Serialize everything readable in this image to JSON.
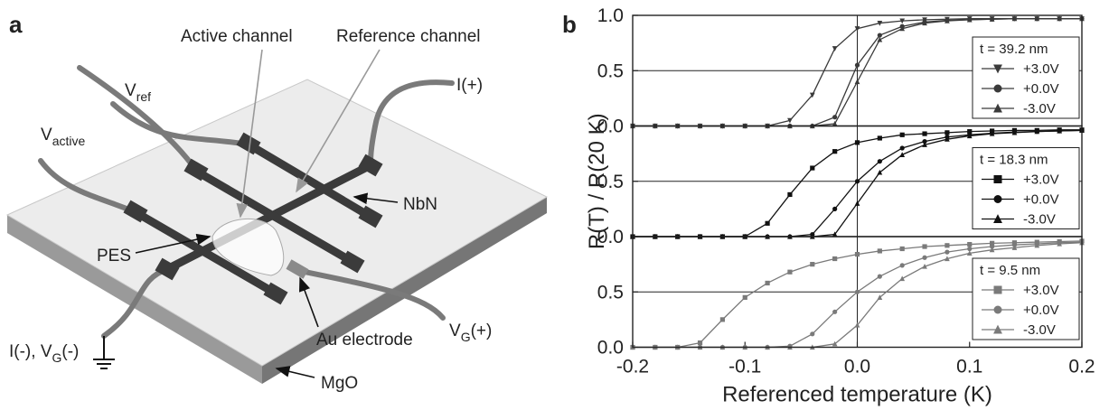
{
  "panel_a": {
    "label": "a",
    "active_channel": "Active channel",
    "reference_channel": "Reference channel",
    "i_plus": "I(+)",
    "v_ref": {
      "main": "V",
      "sub": "ref"
    },
    "v_active": {
      "main": "V",
      "sub": "active"
    },
    "nbn": "NbN",
    "pes": "PES",
    "i_minus": {
      "main": "I(-), V",
      "sub": "G",
      "tail": "(-)"
    },
    "au_electrode": "Au electrode",
    "vg_plus": {
      "main": "V",
      "sub": "G",
      "tail": "(+)"
    },
    "mgo": "MgO"
  },
  "panel_b_label": "b",
  "chart_data": [
    {
      "type": "line",
      "ylabel": "R(T) / R(20 K)",
      "legend_title": "t = 39.2 nm",
      "legend": "right",
      "x": [
        -0.2,
        -0.18,
        -0.16,
        -0.14,
        -0.12,
        -0.1,
        -0.08,
        -0.06,
        -0.04,
        -0.02,
        0,
        0.02,
        0.04,
        0.06,
        0.08,
        0.1,
        0.12,
        0.14,
        0.16,
        0.18,
        0.2
      ],
      "xlim": [
        -0.2,
        0.2
      ],
      "ylim": [
        0,
        1
      ],
      "yticks": [
        {
          "value": 0,
          "label": "0.0"
        },
        0.5,
        {
          "value": 1,
          "label": "1.0"
        }
      ],
      "grid": true,
      "vline": 0,
      "series": [
        {
          "name": "+3.0V",
          "color": "#3a3a3a",
          "marker": "triangle-down",
          "values": [
            0,
            0,
            0,
            0,
            0,
            0,
            0,
            0.05,
            0.28,
            0.7,
            0.88,
            0.93,
            0.95,
            0.96,
            0.965,
            0.97,
            0.97,
            0.97,
            0.97,
            0.97,
            0.97
          ]
        },
        {
          "name": "+0.0V",
          "color": "#3a3a3a",
          "marker": "circle",
          "values": [
            0,
            0,
            0,
            0,
            0,
            0,
            0,
            0,
            0,
            0.08,
            0.55,
            0.82,
            0.9,
            0.94,
            0.955,
            0.96,
            0.965,
            0.97,
            0.97,
            0.97,
            0.97
          ]
        },
        {
          "name": "-3.0V",
          "color": "#3a3a3a",
          "marker": "triangle-up",
          "values": [
            0,
            0,
            0,
            0,
            0,
            0,
            0,
            0,
            0,
            0.02,
            0.4,
            0.78,
            0.88,
            0.93,
            0.95,
            0.96,
            0.965,
            0.97,
            0.97,
            0.97,
            0.97
          ]
        }
      ]
    },
    {
      "type": "line",
      "legend_title": "t = 18.3 nm",
      "legend": "right",
      "x": [
        -0.2,
        -0.18,
        -0.16,
        -0.14,
        -0.12,
        -0.1,
        -0.08,
        -0.06,
        -0.04,
        -0.02,
        0,
        0.02,
        0.04,
        0.06,
        0.08,
        0.1,
        0.12,
        0.14,
        0.16,
        0.18,
        0.2
      ],
      "xlim": [
        -0.2,
        0.2
      ],
      "ylim": [
        0,
        1
      ],
      "yticks": [
        {
          "value": 0,
          "label": "0.0"
        },
        0.5
      ],
      "grid": true,
      "vline": 0,
      "series": [
        {
          "name": "+3.0V",
          "color": "#111111",
          "marker": "square",
          "values": [
            0,
            0,
            0,
            0,
            0,
            0,
            0.12,
            0.38,
            0.62,
            0.77,
            0.85,
            0.89,
            0.92,
            0.93,
            0.94,
            0.95,
            0.955,
            0.96,
            0.96,
            0.965,
            0.965
          ]
        },
        {
          "name": "+0.0V",
          "color": "#111111",
          "marker": "circle",
          "values": [
            0,
            0,
            0,
            0,
            0,
            0,
            0,
            0,
            0.02,
            0.25,
            0.5,
            0.68,
            0.8,
            0.86,
            0.9,
            0.92,
            0.935,
            0.945,
            0.95,
            0.955,
            0.96
          ]
        },
        {
          "name": "-3.0V",
          "color": "#111111",
          "marker": "triangle-up",
          "values": [
            0,
            0,
            0,
            0,
            0,
            0,
            0,
            0,
            0,
            0.02,
            0.3,
            0.58,
            0.74,
            0.83,
            0.88,
            0.91,
            0.93,
            0.94,
            0.95,
            0.955,
            0.96
          ]
        }
      ]
    },
    {
      "type": "line",
      "legend_title": "t = 9.5 nm",
      "legend": "right",
      "xlabel": "Referenced temperature (K)",
      "x": [
        -0.2,
        -0.18,
        -0.16,
        -0.14,
        -0.12,
        -0.1,
        -0.08,
        -0.06,
        -0.04,
        -0.02,
        0,
        0.02,
        0.04,
        0.06,
        0.08,
        0.1,
        0.12,
        0.14,
        0.16,
        0.18,
        0.2
      ],
      "xlim": [
        -0.2,
        0.2
      ],
      "ylim": [
        0,
        1
      ],
      "yticks": [
        {
          "value": 0,
          "label": "0.0"
        },
        0.5
      ],
      "xticks": [
        -0.2,
        -0.1,
        {
          "value": 0,
          "label": "0.0"
        },
        0.1,
        0.2
      ],
      "grid": true,
      "vline": 0,
      "series": [
        {
          "name": "+3.0V",
          "color": "#7a7a7a",
          "marker": "square",
          "values": [
            0,
            0,
            0,
            0.04,
            0.25,
            0.45,
            0.58,
            0.68,
            0.75,
            0.8,
            0.84,
            0.87,
            0.89,
            0.91,
            0.92,
            0.93,
            0.94,
            0.945,
            0.95,
            0.955,
            0.96
          ]
        },
        {
          "name": "+0.0V",
          "color": "#7a7a7a",
          "marker": "circle",
          "values": [
            0,
            0,
            0,
            0,
            0,
            0,
            0,
            0.01,
            0.12,
            0.32,
            0.5,
            0.64,
            0.74,
            0.81,
            0.86,
            0.89,
            0.91,
            0.925,
            0.935,
            0.945,
            0.95
          ]
        },
        {
          "name": "-3.0V",
          "color": "#7a7a7a",
          "marker": "triangle-up",
          "values": [
            0,
            0,
            0,
            0,
            0,
            0,
            0,
            0,
            0,
            0.03,
            0.2,
            0.45,
            0.62,
            0.73,
            0.8,
            0.85,
            0.88,
            0.9,
            0.92,
            0.935,
            0.945
          ]
        }
      ]
    }
  ]
}
